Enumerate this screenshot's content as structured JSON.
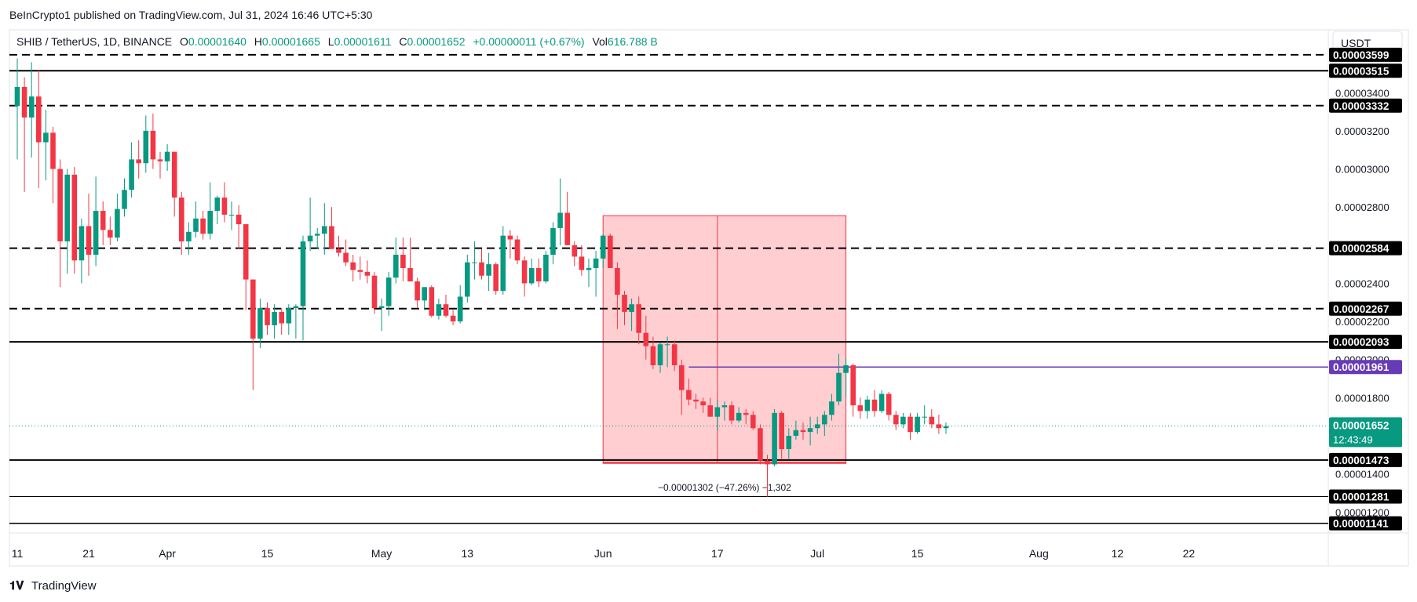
{
  "header": {
    "published": "BeInCrypto1 published on TradingView.com, Jul 31, 2024 16:46 UTC+5:30"
  },
  "legend": {
    "symbol": "SHIB / TetherUS, 1D, BINANCE",
    "o_label": "O",
    "o_value": "0.00001640",
    "h_label": "H",
    "h_value": "0.00001665",
    "l_label": "L",
    "l_value": "0.00001611",
    "c_label": "C",
    "c_value": "0.00001652",
    "change": "+0.00000011 (+0.67%)",
    "vol_label": "Vol",
    "vol_value": "616.788 B"
  },
  "currency_button": "USDT",
  "footer": {
    "brand": "TradingView"
  },
  "colors": {
    "up": "#089981",
    "down": "#f23645",
    "rect_fill": "#ffc6c9",
    "rect_stroke": "#f23645",
    "purple": "#673ab7",
    "dotted_last": "#089981",
    "text": "#131722",
    "axis_text": "#131722"
  },
  "chart_data": {
    "type": "candlestick",
    "title": "SHIB / TetherUS, 1D, BINANCE",
    "xlabel": "",
    "ylabel": "USDT",
    "ylim": [
      1.09e-05,
      3.73e-05
    ],
    "x_ticks": [
      {
        "label": "11",
        "day": 0
      },
      {
        "label": "21",
        "day": 10
      },
      {
        "label": "Apr",
        "day": 21
      },
      {
        "label": "15",
        "day": 35
      },
      {
        "label": "May",
        "day": 51
      },
      {
        "label": "13",
        "day": 63
      },
      {
        "label": "Jun",
        "day": 82
      },
      {
        "label": "17",
        "day": 98
      },
      {
        "label": "Jul",
        "day": 112
      },
      {
        "label": "15",
        "day": 126
      },
      {
        "label": "Aug",
        "day": 143
      },
      {
        "label": "12",
        "day": 154
      },
      {
        "label": "22",
        "day": 164
      }
    ],
    "y_ticks": [
      "0.00003400",
      "0.00003200",
      "0.00003000",
      "0.00002800",
      "0.00002400",
      "0.00002200",
      "0.00002000",
      "0.00001800",
      "0.00001400",
      "0.00001200"
    ],
    "y_tick_values": [
      3.4e-05,
      3.2e-05,
      3e-05,
      2.8e-05,
      2.4e-05,
      2.2e-05,
      2e-05,
      1.8e-05,
      1.4e-05,
      1.2e-05
    ],
    "levels": [
      {
        "label": "0.00003599",
        "value": 3.599e-05,
        "style": "dashed",
        "width": 2
      },
      {
        "label": "0.00003515",
        "value": 3.515e-05,
        "style": "solid",
        "width": 2
      },
      {
        "label": "0.00003332",
        "value": 3.332e-05,
        "style": "dashed",
        "width": 2
      },
      {
        "label": "0.00002584",
        "value": 2.584e-05,
        "style": "dashed",
        "width": 2
      },
      {
        "label": "0.00002267",
        "value": 2.267e-05,
        "style": "dashed",
        "width": 2
      },
      {
        "label": "0.00002093",
        "value": 2.093e-05,
        "style": "solid",
        "width": 2
      },
      {
        "label": "0.00001473",
        "value": 1.473e-05,
        "style": "solid",
        "width": 2
      },
      {
        "label": "0.00001281",
        "value": 1.281e-05,
        "style": "solid",
        "width": 1
      },
      {
        "label": "0.00001141",
        "value": 1.141e-05,
        "style": "solid",
        "width": 1.5
      }
    ],
    "purple_level": {
      "label": "0.00001961",
      "value": 1.961e-05,
      "start_day": 94
    },
    "last_price": {
      "label": "0.00001652",
      "value": 1.652e-05,
      "countdown": "12:43:49"
    },
    "measure": {
      "start_day": 82,
      "end_day": 116,
      "top": 2.755e-05,
      "bottom": 1.455e-05,
      "mid_day": 98,
      "label": "−0.00001302 (−47.26%) −1,302"
    },
    "candles_ohlc": [
      [
        3.33,
        3.58,
        3.05,
        3.43
      ],
      [
        3.43,
        3.48,
        2.88,
        3.27
      ],
      [
        3.27,
        3.56,
        3.06,
        3.38
      ],
      [
        3.38,
        3.52,
        2.9,
        3.14
      ],
      [
        3.14,
        3.31,
        2.94,
        3.19
      ],
      [
        3.19,
        3.22,
        2.82,
        3.0
      ],
      [
        3.0,
        3.05,
        2.38,
        2.62
      ],
      [
        2.62,
        3.0,
        2.45,
        2.97
      ],
      [
        2.97,
        3.01,
        2.45,
        2.52
      ],
      [
        2.52,
        2.74,
        2.4,
        2.7
      ],
      [
        2.7,
        2.87,
        2.44,
        2.55
      ],
      [
        2.55,
        2.96,
        2.49,
        2.78
      ],
      [
        2.78,
        2.83,
        2.6,
        2.68
      ],
      [
        2.68,
        2.75,
        2.6,
        2.64
      ],
      [
        2.64,
        2.87,
        2.62,
        2.79
      ],
      [
        2.79,
        2.95,
        2.75,
        2.89
      ],
      [
        2.89,
        3.14,
        2.85,
        3.05
      ],
      [
        3.05,
        3.15,
        2.95,
        3.03
      ],
      [
        3.03,
        3.28,
        2.98,
        3.2
      ],
      [
        3.2,
        3.29,
        3.0,
        3.05
      ],
      [
        3.05,
        3.09,
        2.95,
        3.04
      ],
      [
        3.04,
        3.13,
        2.99,
        3.09
      ],
      [
        3.09,
        3.09,
        2.75,
        2.85
      ],
      [
        2.85,
        2.88,
        2.55,
        2.62
      ],
      [
        2.62,
        2.72,
        2.55,
        2.67
      ],
      [
        2.67,
        2.83,
        2.64,
        2.74
      ],
      [
        2.74,
        2.78,
        2.63,
        2.66
      ],
      [
        2.66,
        2.93,
        2.63,
        2.78
      ],
      [
        2.78,
        2.86,
        2.71,
        2.85
      ],
      [
        2.85,
        2.93,
        2.72,
        2.76
      ],
      [
        2.76,
        2.83,
        2.68,
        2.76
      ],
      [
        2.76,
        2.81,
        2.58,
        2.71
      ],
      [
        2.71,
        2.71,
        2.26,
        2.42
      ],
      [
        2.42,
        2.42,
        1.84,
        2.11
      ],
      [
        2.11,
        2.32,
        2.06,
        2.27
      ],
      [
        2.27,
        2.3,
        2.13,
        2.18
      ],
      [
        2.18,
        2.29,
        2.11,
        2.25
      ],
      [
        2.25,
        2.27,
        2.13,
        2.19
      ],
      [
        2.19,
        2.29,
        2.13,
        2.27
      ],
      [
        2.27,
        2.29,
        2.11,
        2.28
      ],
      [
        2.28,
        2.65,
        2.1,
        2.62
      ],
      [
        2.62,
        2.85,
        2.57,
        2.65
      ],
      [
        2.65,
        2.69,
        2.58,
        2.66
      ],
      [
        2.66,
        2.82,
        2.55,
        2.7
      ],
      [
        2.7,
        2.8,
        2.58,
        2.58
      ],
      [
        2.58,
        2.65,
        2.54,
        2.56
      ],
      [
        2.56,
        2.63,
        2.49,
        2.51
      ],
      [
        2.51,
        2.55,
        2.41,
        2.47
      ],
      [
        2.47,
        2.54,
        2.42,
        2.46
      ],
      [
        2.46,
        2.52,
        2.4,
        2.44
      ],
      [
        2.44,
        2.46,
        2.24,
        2.27
      ],
      [
        2.27,
        2.32,
        2.15,
        2.28
      ],
      [
        2.28,
        2.46,
        2.23,
        2.43
      ],
      [
        2.43,
        2.64,
        2.4,
        2.55
      ],
      [
        2.55,
        2.64,
        2.41,
        2.48
      ],
      [
        2.48,
        2.64,
        2.41,
        2.41
      ],
      [
        2.41,
        2.43,
        2.27,
        2.31
      ],
      [
        2.31,
        2.38,
        2.26,
        2.38
      ],
      [
        2.38,
        2.39,
        2.22,
        2.23
      ],
      [
        2.23,
        2.32,
        2.21,
        2.29
      ],
      [
        2.29,
        2.34,
        2.22,
        2.23
      ],
      [
        2.23,
        2.26,
        2.18,
        2.2
      ],
      [
        2.2,
        2.39,
        2.19,
        2.33
      ],
      [
        2.33,
        2.55,
        2.3,
        2.51
      ],
      [
        2.51,
        2.62,
        2.42,
        2.51
      ],
      [
        2.51,
        2.58,
        2.42,
        2.44
      ],
      [
        2.44,
        2.56,
        2.36,
        2.5
      ],
      [
        2.5,
        2.51,
        2.34,
        2.36
      ],
      [
        2.36,
        2.7,
        2.34,
        2.65
      ],
      [
        2.65,
        2.68,
        2.53,
        2.63
      ],
      [
        2.63,
        2.65,
        2.5,
        2.52
      ],
      [
        2.52,
        2.54,
        2.33,
        2.4
      ],
      [
        2.4,
        2.53,
        2.39,
        2.48
      ],
      [
        2.48,
        2.53,
        2.38,
        2.41
      ],
      [
        2.41,
        2.57,
        2.4,
        2.55
      ],
      [
        2.55,
        2.72,
        2.5,
        2.69
      ],
      [
        2.69,
        2.95,
        2.6,
        2.77
      ],
      [
        2.77,
        2.88,
        2.6,
        2.6
      ],
      [
        2.6,
        2.62,
        2.49,
        2.54
      ],
      [
        2.54,
        2.6,
        2.44,
        2.47
      ],
      [
        2.47,
        2.53,
        2.38,
        2.48
      ],
      [
        2.48,
        2.57,
        2.33,
        2.53
      ],
      [
        2.53,
        2.66,
        2.48,
        2.65
      ],
      [
        2.65,
        2.66,
        2.48,
        2.48
      ],
      [
        2.48,
        2.51,
        2.16,
        2.34
      ],
      [
        2.34,
        2.36,
        2.18,
        2.25
      ],
      [
        2.25,
        2.32,
        2.15,
        2.29
      ],
      [
        2.29,
        2.33,
        2.08,
        2.14
      ],
      [
        2.14,
        2.23,
        2.0,
        2.07
      ],
      [
        2.07,
        2.12,
        1.95,
        1.97
      ],
      [
        1.97,
        2.09,
        1.93,
        2.08
      ],
      [
        2.08,
        2.12,
        1.96,
        2.08
      ],
      [
        2.08,
        2.1,
        1.94,
        1.97
      ],
      [
        1.97,
        2.0,
        1.71,
        1.84
      ],
      [
        1.84,
        1.9,
        1.76,
        1.79
      ],
      [
        1.79,
        1.82,
        1.74,
        1.78
      ],
      [
        1.78,
        1.8,
        1.72,
        1.76
      ],
      [
        1.76,
        1.8,
        1.71,
        1.7
      ],
      [
        1.7,
        1.79,
        1.63,
        1.75
      ],
      [
        1.75,
        1.78,
        1.68,
        1.76
      ],
      [
        1.76,
        1.78,
        1.66,
        1.68
      ],
      [
        1.68,
        1.75,
        1.67,
        1.72
      ],
      [
        1.72,
        1.74,
        1.66,
        1.71
      ],
      [
        1.71,
        1.73,
        1.63,
        1.64
      ],
      [
        1.64,
        1.66,
        1.45,
        1.47
      ],
      [
        1.47,
        1.5,
        1.28,
        1.45
      ],
      [
        1.45,
        1.74,
        1.44,
        1.72
      ],
      [
        1.72,
        1.73,
        1.48,
        1.53
      ],
      [
        1.53,
        1.64,
        1.48,
        1.6
      ],
      [
        1.6,
        1.68,
        1.58,
        1.63
      ],
      [
        1.63,
        1.67,
        1.58,
        1.62
      ],
      [
        1.62,
        1.7,
        1.55,
        1.64
      ],
      [
        1.64,
        1.7,
        1.61,
        1.66
      ],
      [
        1.66,
        1.73,
        1.6,
        1.71
      ],
      [
        1.71,
        1.82,
        1.68,
        1.78
      ],
      [
        1.78,
        2.03,
        1.76,
        1.93
      ],
      [
        1.93,
        2.01,
        1.8,
        1.97
      ],
      [
        1.97,
        1.98,
        1.7,
        1.76
      ],
      [
        1.76,
        1.8,
        1.69,
        1.73
      ],
      [
        1.73,
        1.81,
        1.69,
        1.79
      ],
      [
        1.79,
        1.84,
        1.7,
        1.73
      ],
      [
        1.73,
        1.84,
        1.72,
        1.82
      ],
      [
        1.82,
        1.83,
        1.68,
        1.71
      ],
      [
        1.71,
        1.73,
        1.63,
        1.66
      ],
      [
        1.66,
        1.72,
        1.64,
        1.7
      ],
      [
        1.7,
        1.72,
        1.58,
        1.62
      ],
      [
        1.62,
        1.72,
        1.61,
        1.7
      ],
      [
        1.7,
        1.76,
        1.66,
        1.7
      ],
      [
        1.7,
        1.74,
        1.64,
        1.66
      ],
      [
        1.66,
        1.71,
        1.61,
        1.64
      ],
      [
        1.64,
        1.67,
        1.61,
        1.65
      ]
    ]
  }
}
